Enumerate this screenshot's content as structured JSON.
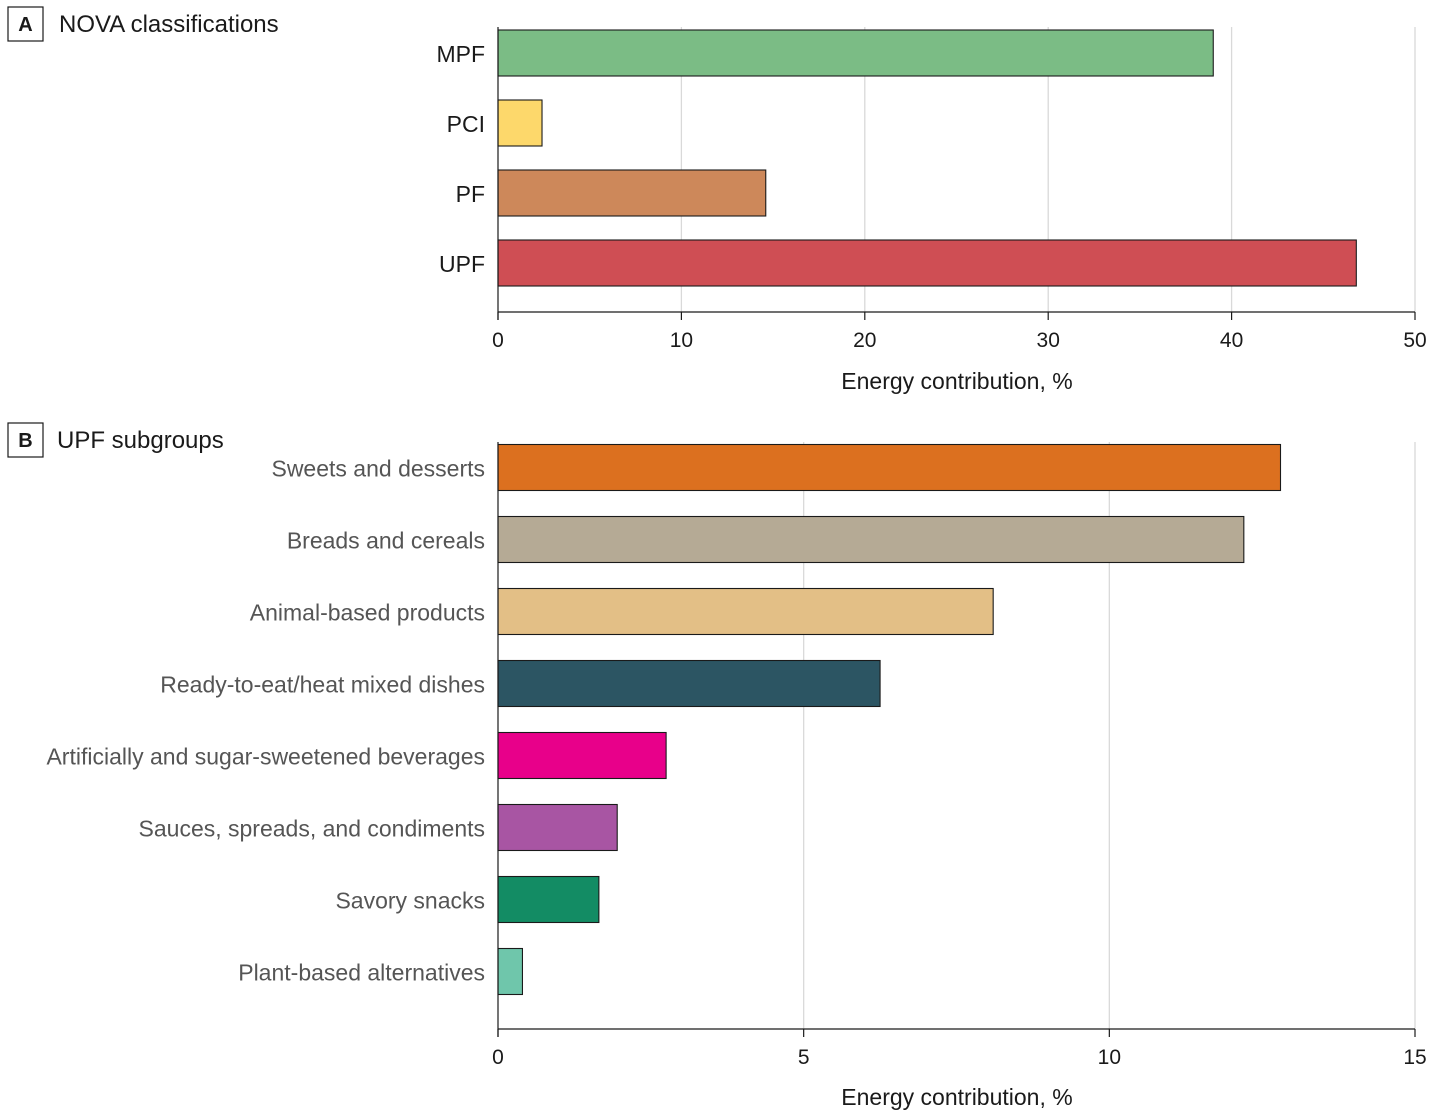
{
  "chart_data": [
    {
      "panel": "A",
      "title": "NOVA classifications",
      "type": "bar",
      "orientation": "horizontal",
      "categories": [
        "MPF",
        "PCI",
        "PF",
        "UPF"
      ],
      "values": [
        39,
        2.4,
        14.6,
        46.8
      ],
      "colors": [
        "#7bbc85",
        "#fdd86b",
        "#cd885a",
        "#cf4e54"
      ],
      "xlabel": "Energy contribution, %",
      "ylabel": "",
      "xlim": [
        0,
        50
      ],
      "xticks": [
        0,
        10,
        20,
        30,
        40,
        50
      ],
      "grid": true
    },
    {
      "panel": "B",
      "title": "UPF subgroups",
      "type": "bar",
      "orientation": "horizontal",
      "categories": [
        "Sweets and desserts",
        "Breads and cereals",
        "Animal-based products",
        "Ready-to-eat/heat mixed dishes",
        "Artificially and sugar-sweetened beverages",
        "Sauces, spreads, and condiments",
        "Savory snacks",
        "Plant-based alternatives"
      ],
      "values": [
        12.8,
        12.2,
        8.1,
        6.25,
        2.75,
        1.95,
        1.65,
        0.4
      ],
      "colors": [
        "#dc701f",
        "#b5aa95",
        "#e3bf86",
        "#2c5563",
        "#e8008a",
        "#a855a3",
        "#138c64",
        "#6fc6ab"
      ],
      "xlabel": "Energy contribution, %",
      "ylabel": "",
      "xlim": [
        0,
        15
      ],
      "xticks": [
        0,
        5,
        10,
        15
      ],
      "grid": true
    }
  ]
}
